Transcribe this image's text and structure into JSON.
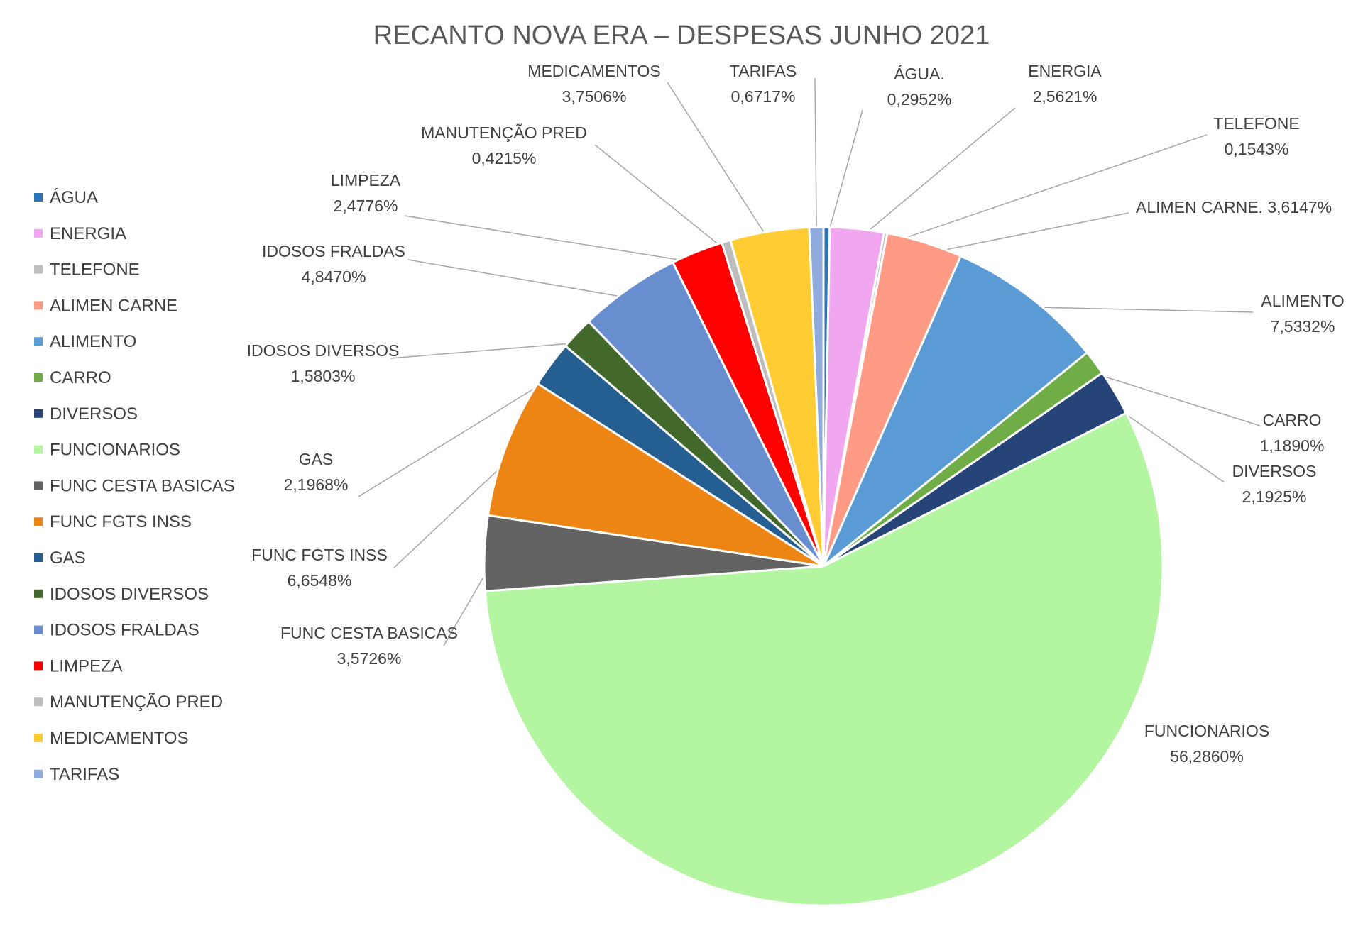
{
  "chart_data": {
    "type": "pie",
    "title": "RECANTO NOVA ERA – DESPESAS JUNHO 2021",
    "legend_position": "left",
    "slices": [
      {
        "name": "ÁGUA",
        "label": "ÁGUA.",
        "value_text": "0,2952%",
        "value": 0.2952,
        "color": "#2e75b6"
      },
      {
        "name": "ENERGIA",
        "label": "ENERGIA",
        "value_text": "2,5621%",
        "value": 2.5621,
        "color": "#f0a7f0"
      },
      {
        "name": "TELEFONE",
        "label": "TELEFONE",
        "value_text": "0,1543%",
        "value": 0.1543,
        "color": "#bfbfbf"
      },
      {
        "name": "ALIMEN CARNE",
        "label": "ALIMEN CARNE.",
        "value_text": "3,6147%",
        "value": 3.6147,
        "color": "#ff9a85"
      },
      {
        "name": "ALIMENTO",
        "label": "ALIMENTO",
        "value_text": "7,5332%",
        "value": 7.5332,
        "color": "#5b9bd5"
      },
      {
        "name": "CARRO",
        "label": "CARRO",
        "value_text": "1,1890%",
        "value": 1.189,
        "color": "#70ad47"
      },
      {
        "name": "DIVERSOS",
        "label": "DIVERSOS",
        "value_text": "2,1925%",
        "value": 2.1925,
        "color": "#264478"
      },
      {
        "name": "FUNCIONARIOS",
        "label": "FUNCIONARIOS",
        "value_text": "56,2860%",
        "value": 56.286,
        "color": "#b3f5a1"
      },
      {
        "name": "FUNC CESTA BASICAS",
        "label": "FUNC CESTA BASICAS",
        "value_text": "3,5726%",
        "value": 3.5726,
        "color": "#636363"
      },
      {
        "name": "FUNC FGTS INSS",
        "label": "FUNC FGTS INSS",
        "value_text": "6,6548%",
        "value": 6.6548,
        "color": "#ed8515"
      },
      {
        "name": "GAS",
        "label": "GAS",
        "value_text": "2,1968%",
        "value": 2.1968,
        "color": "#255e91"
      },
      {
        "name": "IDOSOS DIVERSOS",
        "label": "IDOSOS DIVERSOS",
        "value_text": "1,5803%",
        "value": 1.5803,
        "color": "#43682b"
      },
      {
        "name": "IDOSOS FRALDAS",
        "label": "IDOSOS FRALDAS",
        "value_text": "4,8470%",
        "value": 4.847,
        "color": "#698ed0"
      },
      {
        "name": "LIMPEZA",
        "label": "LIMPEZA",
        "value_text": "2,4776%",
        "value": 2.4776,
        "color": "#ff0000"
      },
      {
        "name": "MANUTENÇÃO PRED",
        "label": "MANUTENÇÃO PRED",
        "value_text": "0,4215%",
        "value": 0.4215,
        "color": "#bdbdbd"
      },
      {
        "name": "MEDICAMENTOS",
        "label": "MEDICAMENTOS",
        "value_text": "3,7506%",
        "value": 3.7506,
        "color": "#ffcd33"
      },
      {
        "name": "TARIFAS",
        "label": "TARIFAS",
        "value_text": "0,6717%",
        "value": 0.6717,
        "color": "#8faadc"
      }
    ]
  }
}
